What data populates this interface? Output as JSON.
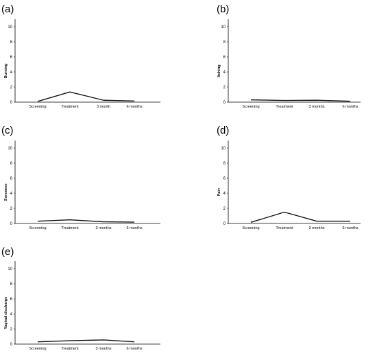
{
  "chart_data": [
    {
      "type": "line",
      "panel_label": "(a)",
      "ylabel": "Burning",
      "categories": [
        "Screening",
        "Treatment",
        "3 month",
        "6 months"
      ],
      "yticks": [
        "0",
        "2",
        "4",
        "6",
        "8",
        "10"
      ],
      "ylim": [
        0,
        11
      ],
      "values": [
        0.1,
        1.35,
        0.25,
        0.15
      ]
    },
    {
      "type": "line",
      "panel_label": "(b)",
      "ylabel": "Itching",
      "categories": [
        "Screening",
        "Treatment",
        "3 months",
        "6 months"
      ],
      "yticks": [
        "0",
        "2",
        "4",
        "6",
        "8",
        "10"
      ],
      "ylim": [
        0,
        11
      ],
      "values": [
        0.3,
        0.22,
        0.25,
        0.12
      ]
    },
    {
      "type": "line",
      "panel_label": "(c)",
      "ylabel": "Soreness",
      "categories": [
        "Screening",
        "Treatment",
        "3 months",
        "6 months"
      ],
      "yticks": [
        "0",
        "2",
        "4",
        "6",
        "8",
        "10"
      ],
      "ylim": [
        0,
        11
      ],
      "values": [
        0.3,
        0.48,
        0.22,
        0.18
      ]
    },
    {
      "type": "line",
      "panel_label": "(d)",
      "ylabel": "Pain",
      "categories": [
        "Screening",
        "Treatment",
        "3 months",
        "6 months"
      ],
      "yticks": [
        "0",
        "2",
        "4",
        "6",
        "8",
        "10"
      ],
      "ylim": [
        0,
        11
      ],
      "values": [
        0.15,
        1.5,
        0.3,
        0.3
      ]
    },
    {
      "type": "line",
      "panel_label": "(e)",
      "ylabel": "Vaginal discharge",
      "categories": [
        "Screening",
        "Treatment",
        "3 months",
        "6 months"
      ],
      "yticks": [
        "0",
        "2",
        "4",
        "6",
        "8",
        "10"
      ],
      "ylim": [
        0,
        11
      ],
      "values": [
        0.3,
        0.45,
        0.55,
        0.3
      ]
    }
  ]
}
